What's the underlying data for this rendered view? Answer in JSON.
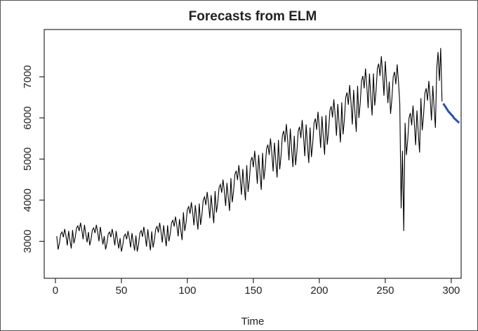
{
  "chart_data": {
    "type": "line",
    "title": "Forecasts from ELM",
    "x_label": "Time",
    "xlim": [
      -8.5,
      307.5
    ],
    "xticks": [
      0,
      50,
      100,
      150,
      200,
      250,
      300
    ],
    "ylim": [
      2100,
      8150
    ],
    "yticks": [
      3000,
      4000,
      5000,
      6000,
      7000
    ],
    "series": [
      {
        "name": "Observed",
        "color": "#000000",
        "x": [
          1,
          2,
          3,
          4,
          5,
          6,
          7,
          8,
          9,
          10,
          11,
          12,
          13,
          14,
          15,
          16,
          17,
          18,
          19,
          20,
          21,
          22,
          23,
          24,
          25,
          26,
          27,
          28,
          29,
          30,
          31,
          32,
          33,
          34,
          35,
          36,
          37,
          38,
          39,
          40,
          41,
          42,
          43,
          44,
          45,
          46,
          47,
          48,
          49,
          50,
          51,
          52,
          53,
          54,
          55,
          56,
          57,
          58,
          59,
          60,
          61,
          62,
          63,
          64,
          65,
          66,
          67,
          68,
          69,
          70,
          71,
          72,
          73,
          74,
          75,
          76,
          77,
          78,
          79,
          80,
          81,
          82,
          83,
          84,
          85,
          86,
          87,
          88,
          89,
          90,
          91,
          92,
          93,
          94,
          95,
          96,
          97,
          98,
          99,
          100,
          101,
          102,
          103,
          104,
          105,
          106,
          107,
          108,
          109,
          110,
          111,
          112,
          113,
          114,
          115,
          116,
          117,
          118,
          119,
          120,
          121,
          122,
          123,
          124,
          125,
          126,
          127,
          128,
          129,
          130,
          131,
          132,
          133,
          134,
          135,
          136,
          137,
          138,
          139,
          140,
          141,
          142,
          143,
          144,
          145,
          146,
          147,
          148,
          149,
          150,
          151,
          152,
          153,
          154,
          155,
          156,
          157,
          158,
          159,
          160,
          161,
          162,
          163,
          164,
          165,
          166,
          167,
          168,
          169,
          170,
          171,
          172,
          173,
          174,
          175,
          176,
          177,
          178,
          179,
          180,
          181,
          182,
          183,
          184,
          185,
          186,
          187,
          188,
          189,
          190,
          191,
          192,
          193,
          194,
          195,
          196,
          197,
          198,
          199,
          200,
          201,
          202,
          203,
          204,
          205,
          206,
          207,
          208,
          209,
          210,
          211,
          212,
          213,
          214,
          215,
          216,
          217,
          218,
          219,
          220,
          221,
          222,
          223,
          224,
          225,
          226,
          227,
          228,
          229,
          230,
          231,
          232,
          233,
          234,
          235,
          236,
          237,
          238,
          239,
          240,
          241,
          242,
          243,
          244,
          245,
          246,
          247,
          248,
          249,
          250,
          251,
          252,
          253,
          254,
          255,
          256,
          257,
          258,
          259,
          260,
          261,
          262,
          263,
          264,
          265,
          266,
          267,
          268,
          269,
          270,
          271,
          272,
          273,
          274,
          275,
          276,
          277,
          278,
          279,
          280,
          281,
          282,
          283,
          284,
          285,
          286,
          287,
          288,
          289,
          290,
          291,
          292,
          293
        ],
        "values": [
          3125,
          2800,
          2950,
          3175,
          3225,
          3100,
          3300,
          3125,
          2900,
          3250,
          3025,
          2825,
          3275,
          2950,
          3100,
          3325,
          3375,
          3250,
          3450,
          3275,
          3050,
          3400,
          3175,
          2975,
          3225,
          2900,
          3050,
          3275,
          3325,
          3200,
          3400,
          3225,
          3000,
          3350,
          3125,
          2925,
          3125,
          2800,
          2950,
          3175,
          3225,
          3100,
          3300,
          3125,
          2900,
          3250,
          3025,
          2825,
          3075,
          2750,
          2900,
          3125,
          3175,
          3050,
          3250,
          3075,
          2850,
          3200,
          2975,
          2775,
          3140,
          2750,
          2930,
          3200,
          3260,
          3110,
          3350,
          3140,
          2870,
          3290,
          3020,
          2780,
          3240,
          2850,
          3030,
          3300,
          3360,
          3210,
          3450,
          3240,
          2970,
          3390,
          3120,
          2880,
          3390,
          3000,
          3180,
          3450,
          3510,
          3360,
          3600,
          3390,
          3120,
          3540,
          3270,
          3030,
          3705,
          3250,
          3460,
          3775,
          3845,
          3670,
          3950,
          3705,
          3390,
          3880,
          3565,
          3285,
          3920,
          3400,
          3640,
          4000,
          4080,
          3880,
          4200,
          3920,
          3560,
          4120,
          3760,
          3440,
          4220,
          3700,
          3940,
          4300,
          4380,
          4180,
          4500,
          4220,
          3860,
          4420,
          4060,
          3740,
          4535,
          3950,
          4220,
          4625,
          4715,
          4490,
          4850,
          4535,
          4130,
          4760,
          4355,
          3995,
          4850,
          4200,
          4500,
          4950,
          5050,
          4800,
          5200,
          4850,
          4400,
          5100,
          4650,
          4250,
          5150,
          4500,
          4800,
          5250,
          5350,
          5100,
          5500,
          5150,
          4700,
          5400,
          4950,
          4550,
          5465,
          4750,
          5080,
          5575,
          5685,
          5410,
          5850,
          5465,
          4970,
          5740,
          5245,
          4805,
          5565,
          4850,
          5180,
          5675,
          5785,
          5510,
          5950,
          5565,
          5070,
          5840,
          5345,
          4905,
          5765,
          5050,
          5380,
          5875,
          5985,
          5710,
          6150,
          5765,
          5270,
          6040,
          5545,
          5105,
          6065,
          5350,
          5680,
          6175,
          6285,
          6010,
          6450,
          6065,
          5570,
          6340,
          5845,
          5405,
          6380,
          5600,
          5960,
          6500,
          6620,
          6320,
          6800,
          6380,
          5840,
          6680,
          6140,
          5660,
          6780,
          6000,
          6360,
          6900,
          7020,
          6720,
          7200,
          6780,
          6240,
          7080,
          6540,
          6060,
          7080,
          6300,
          6660,
          7200,
          7320,
          7020,
          7500,
          7080,
          6540,
          7380,
          6840,
          6360,
          6880,
          6100,
          6460,
          7000,
          7120,
          6820,
          7300,
          6880,
          6340,
          3800,
          5200,
          3250,
          5880,
          5100,
          5460,
          6000,
          6120,
          5820,
          6300,
          5880,
          5340,
          6180,
          5640,
          5160,
          6480,
          5700,
          6060,
          6600,
          6720,
          6420,
          6900,
          6480,
          5940,
          6780,
          6240,
          5760,
          7200,
          7600,
          6900,
          7700,
          6400
        ]
      },
      {
        "name": "Forecast",
        "color": "#2e4fa8",
        "x": [
          294,
          295,
          296,
          297,
          298,
          299,
          300,
          301,
          302,
          303,
          304,
          305,
          306
        ],
        "values": [
          6350,
          6300,
          6250,
          6200,
          6150,
          6120,
          6080,
          6050,
          6000,
          5970,
          5940,
          5910,
          5880
        ]
      }
    ]
  }
}
